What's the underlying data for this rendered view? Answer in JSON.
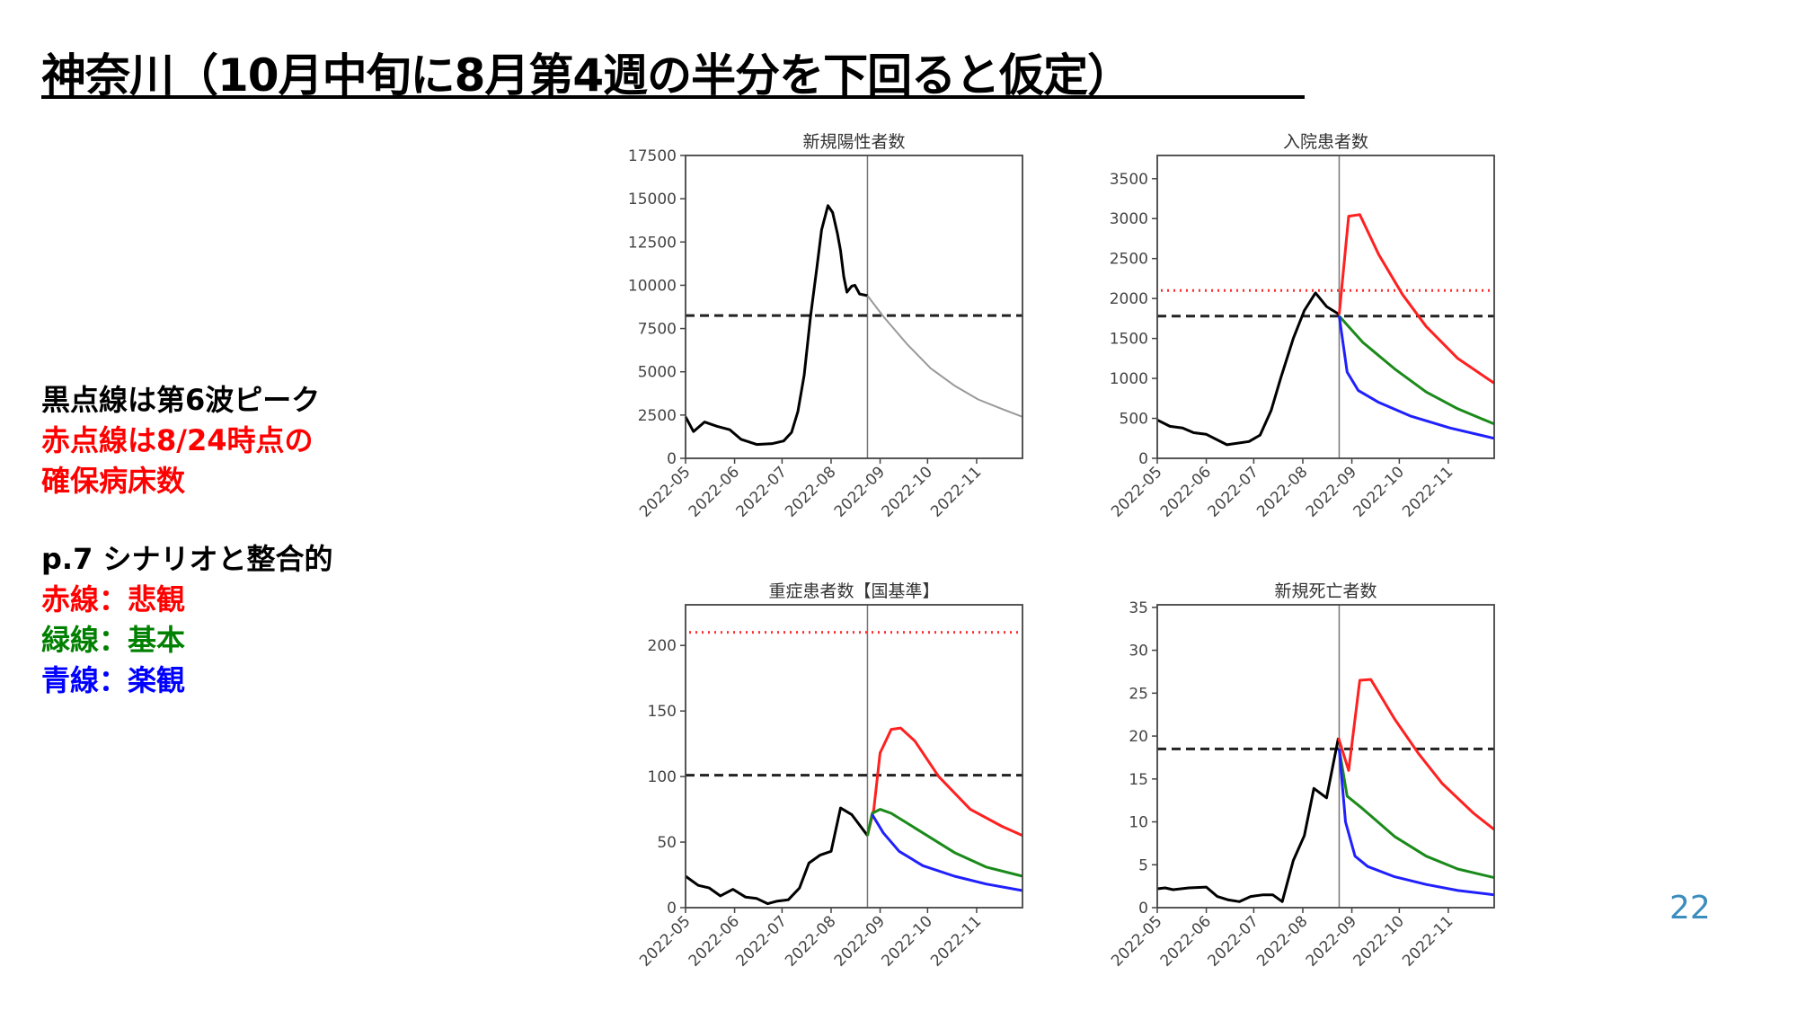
{
  "title": "神奈川（10月中旬に8月第4週の半分を下回ると仮定）",
  "notes": {
    "line1": "黒点線は第6波ピーク",
    "line2": "赤点線は8/24時点の",
    "line3": "確保病床数",
    "line4": "p.7 シナリオと整合的",
    "line5": "赤線：悲観",
    "line6": "緑線：基本",
    "line7": "青線：楽観"
  },
  "page_number": "22",
  "colors": {
    "actual": "#000000",
    "forecast": "#999999",
    "pessimistic": "#ff2020",
    "base": "#1a8a1a",
    "optimistic": "#2020ff",
    "note_red": "#ff0000",
    "note_green": "#008000",
    "note_blue": "#0000ff"
  },
  "chart_data": [
    {
      "type": "line",
      "title": "新規陽性者数",
      "x_unit": "days since 2022-05-01",
      "xlim": [
        0,
        213
      ],
      "ylim": [
        0,
        17500
      ],
      "yticks": [
        0,
        2500,
        5000,
        7500,
        10000,
        12500,
        15000,
        17500
      ],
      "xticks": [
        {
          "day": 0,
          "label": "2022-05"
        },
        {
          "day": 31,
          "label": "2022-06"
        },
        {
          "day": 61,
          "label": "2022-07"
        },
        {
          "day": 92,
          "label": "2022-08"
        },
        {
          "day": 123,
          "label": "2022-09"
        },
        {
          "day": 153,
          "label": "2022-10"
        },
        {
          "day": 184,
          "label": "2022-11"
        }
      ],
      "vline_day": 115,
      "peak6_line": 8250,
      "bed_line": null,
      "series": [
        {
          "name": "actual",
          "color_key": "actual",
          "points": [
            [
              0,
              2400
            ],
            [
              5,
              1550
            ],
            [
              12,
              2100
            ],
            [
              20,
              1850
            ],
            [
              28,
              1650
            ],
            [
              35,
              1100
            ],
            [
              45,
              800
            ],
            [
              55,
              850
            ],
            [
              62,
              1000
            ],
            [
              67,
              1500
            ],
            [
              71,
              2700
            ],
            [
              75,
              4800
            ],
            [
              79,
              8200
            ],
            [
              83,
              11000
            ],
            [
              86,
              13200
            ],
            [
              90,
              14600
            ],
            [
              93,
              14200
            ],
            [
              96,
              13000
            ],
            [
              98,
              12000
            ],
            [
              100,
              10500
            ],
            [
              102,
              9600
            ],
            [
              105,
              9950
            ],
            [
              107,
              10000
            ],
            [
              110,
              9500
            ],
            [
              115,
              9400
            ]
          ]
        },
        {
          "name": "forecast",
          "color_key": "forecast",
          "points": [
            [
              115,
              9400
            ],
            [
              125,
              8200
            ],
            [
              140,
              6600
            ],
            [
              155,
              5200
            ],
            [
              170,
              4200
            ],
            [
              185,
              3400
            ],
            [
              200,
              2850
            ],
            [
              213,
              2400
            ]
          ]
        }
      ]
    },
    {
      "type": "line",
      "title": "入院患者数",
      "x_unit": "days since 2022-05-01",
      "xlim": [
        0,
        213
      ],
      "ylim": [
        0,
        3790
      ],
      "yticks": [
        0,
        500,
        1000,
        1500,
        2000,
        2500,
        3000,
        3500
      ],
      "xticks": [
        {
          "day": 0,
          "label": "2022-05"
        },
        {
          "day": 31,
          "label": "2022-06"
        },
        {
          "day": 61,
          "label": "2022-07"
        },
        {
          "day": 92,
          "label": "2022-08"
        },
        {
          "day": 123,
          "label": "2022-09"
        },
        {
          "day": 153,
          "label": "2022-10"
        },
        {
          "day": 184,
          "label": "2022-11"
        }
      ],
      "vline_day": 115,
      "peak6_line": 1780,
      "bed_line": 2100,
      "series": [
        {
          "name": "actual",
          "color_key": "actual",
          "points": [
            [
              0,
              480
            ],
            [
              8,
              400
            ],
            [
              16,
              380
            ],
            [
              23,
              320
            ],
            [
              31,
              300
            ],
            [
              44,
              170
            ],
            [
              58,
              210
            ],
            [
              65,
              290
            ],
            [
              72,
              600
            ],
            [
              78,
              1000
            ],
            [
              86,
              1500
            ],
            [
              93,
              1850
            ],
            [
              100,
              2070
            ],
            [
              107,
              1900
            ],
            [
              115,
              1800
            ]
          ]
        },
        {
          "name": "pessimistic",
          "color_key": "pessimistic",
          "points": [
            [
              115,
              1800
            ],
            [
              121,
              3030
            ],
            [
              128,
              3050
            ],
            [
              140,
              2550
            ],
            [
              155,
              2050
            ],
            [
              170,
              1650
            ],
            [
              190,
              1250
            ],
            [
              213,
              940
            ]
          ]
        },
        {
          "name": "base",
          "color_key": "base",
          "points": [
            [
              115,
              1780
            ],
            [
              130,
              1450
            ],
            [
              150,
              1120
            ],
            [
              170,
              830
            ],
            [
              190,
              620
            ],
            [
              213,
              430
            ]
          ]
        },
        {
          "name": "optimistic",
          "color_key": "optimistic",
          "points": [
            [
              115,
              1780
            ],
            [
              120,
              1080
            ],
            [
              127,
              850
            ],
            [
              140,
              700
            ],
            [
              160,
              530
            ],
            [
              185,
              380
            ],
            [
              213,
              250
            ]
          ]
        }
      ]
    },
    {
      "type": "line",
      "title": "重症患者数【国基準】",
      "x_unit": "days since 2022-05-01",
      "xlim": [
        0,
        213
      ],
      "ylim": [
        0,
        231
      ],
      "yticks": [
        0,
        50,
        100,
        150,
        200
      ],
      "xticks": [
        {
          "day": 0,
          "label": "2022-05"
        },
        {
          "day": 31,
          "label": "2022-06"
        },
        {
          "day": 61,
          "label": "2022-07"
        },
        {
          "day": 92,
          "label": "2022-08"
        },
        {
          "day": 123,
          "label": "2022-09"
        },
        {
          "day": 153,
          "label": "2022-10"
        },
        {
          "day": 184,
          "label": "2022-11"
        }
      ],
      "vline_day": 115,
      "peak6_line": 101,
      "bed_line": 210,
      "series": [
        {
          "name": "actual",
          "color_key": "actual",
          "points": [
            [
              0,
              24
            ],
            [
              8,
              17
            ],
            [
              15,
              15
            ],
            [
              22,
              9
            ],
            [
              30,
              14
            ],
            [
              38,
              8
            ],
            [
              45,
              7
            ],
            [
              52,
              3
            ],
            [
              58,
              5
            ],
            [
              65,
              6
            ],
            [
              72,
              15
            ],
            [
              78,
              34
            ],
            [
              85,
              40
            ],
            [
              92,
              43
            ],
            [
              98,
              76
            ],
            [
              105,
              71
            ],
            [
              115,
              55
            ]
          ]
        },
        {
          "name": "pessimistic",
          "color_key": "pessimistic",
          "points": [
            [
              115,
              55
            ],
            [
              119,
              75
            ],
            [
              123,
              118
            ],
            [
              130,
              136
            ],
            [
              136,
              137
            ],
            [
              145,
              127
            ],
            [
              160,
              100
            ],
            [
              180,
              75
            ],
            [
              200,
              62
            ],
            [
              213,
              55
            ]
          ]
        },
        {
          "name": "base",
          "color_key": "base",
          "points": [
            [
              115,
              55
            ],
            [
              118,
              72
            ],
            [
              123,
              75
            ],
            [
              130,
              72
            ],
            [
              150,
              57
            ],
            [
              170,
              42
            ],
            [
              190,
              31
            ],
            [
              213,
              24
            ]
          ]
        },
        {
          "name": "optimistic",
          "color_key": "optimistic",
          "points": [
            [
              118,
              71
            ],
            [
              125,
              57
            ],
            [
              135,
              43
            ],
            [
              150,
              32
            ],
            [
              170,
              24
            ],
            [
              190,
              18
            ],
            [
              213,
              13
            ]
          ]
        }
      ]
    },
    {
      "type": "line",
      "title": "新規死亡者数",
      "x_unit": "days since 2022-05-01",
      "xlim": [
        0,
        213
      ],
      "ylim": [
        0,
        35.3
      ],
      "yticks": [
        0,
        5,
        10,
        15,
        20,
        25,
        30,
        35
      ],
      "xticks": [
        {
          "day": 0,
          "label": "2022-05"
        },
        {
          "day": 31,
          "label": "2022-06"
        },
        {
          "day": 61,
          "label": "2022-07"
        },
        {
          "day": 92,
          "label": "2022-08"
        },
        {
          "day": 123,
          "label": "2022-09"
        },
        {
          "day": 153,
          "label": "2022-10"
        },
        {
          "day": 184,
          "label": "2022-11"
        }
      ],
      "vline_day": 115,
      "peak6_line": 18.5,
      "bed_line": null,
      "series": [
        {
          "name": "actual",
          "color_key": "actual",
          "points": [
            [
              0,
              2.2
            ],
            [
              5,
              2.3
            ],
            [
              10,
              2.1
            ],
            [
              15,
              2.2
            ],
            [
              20,
              2.3
            ],
            [
              31,
              2.4
            ],
            [
              38,
              1.3
            ],
            [
              45,
              0.9
            ],
            [
              52,
              0.7
            ],
            [
              59,
              1.3
            ],
            [
              67,
              1.5
            ],
            [
              73,
              1.5
            ],
            [
              79,
              0.7
            ],
            [
              86,
              5.5
            ],
            [
              93,
              8.4
            ],
            [
              99,
              13.9
            ],
            [
              107,
              12.8
            ],
            [
              114.5,
              19.8
            ]
          ]
        },
        {
          "name": "pessimistic",
          "color_key": "pessimistic",
          "points": [
            [
              114.5,
              19.8
            ],
            [
              121,
              16
            ],
            [
              128,
              26.5
            ],
            [
              135,
              26.6
            ],
            [
              150,
              22
            ],
            [
              165,
              18
            ],
            [
              180,
              14.5
            ],
            [
              200,
              11
            ],
            [
              213,
              9.1
            ]
          ]
        },
        {
          "name": "base",
          "color_key": "base",
          "points": [
            [
              115,
              18.5
            ],
            [
              120,
              13
            ],
            [
              130,
              11.5
            ],
            [
              150,
              8.3
            ],
            [
              170,
              6
            ],
            [
              190,
              4.5
            ],
            [
              213,
              3.5
            ]
          ]
        },
        {
          "name": "optimistic",
          "color_key": "optimistic",
          "points": [
            [
              115,
              18.5
            ],
            [
              119,
              10
            ],
            [
              125,
              6
            ],
            [
              133,
              4.8
            ],
            [
              150,
              3.6
            ],
            [
              170,
              2.7
            ],
            [
              190,
              2
            ],
            [
              213,
              1.5
            ]
          ]
        }
      ]
    }
  ]
}
